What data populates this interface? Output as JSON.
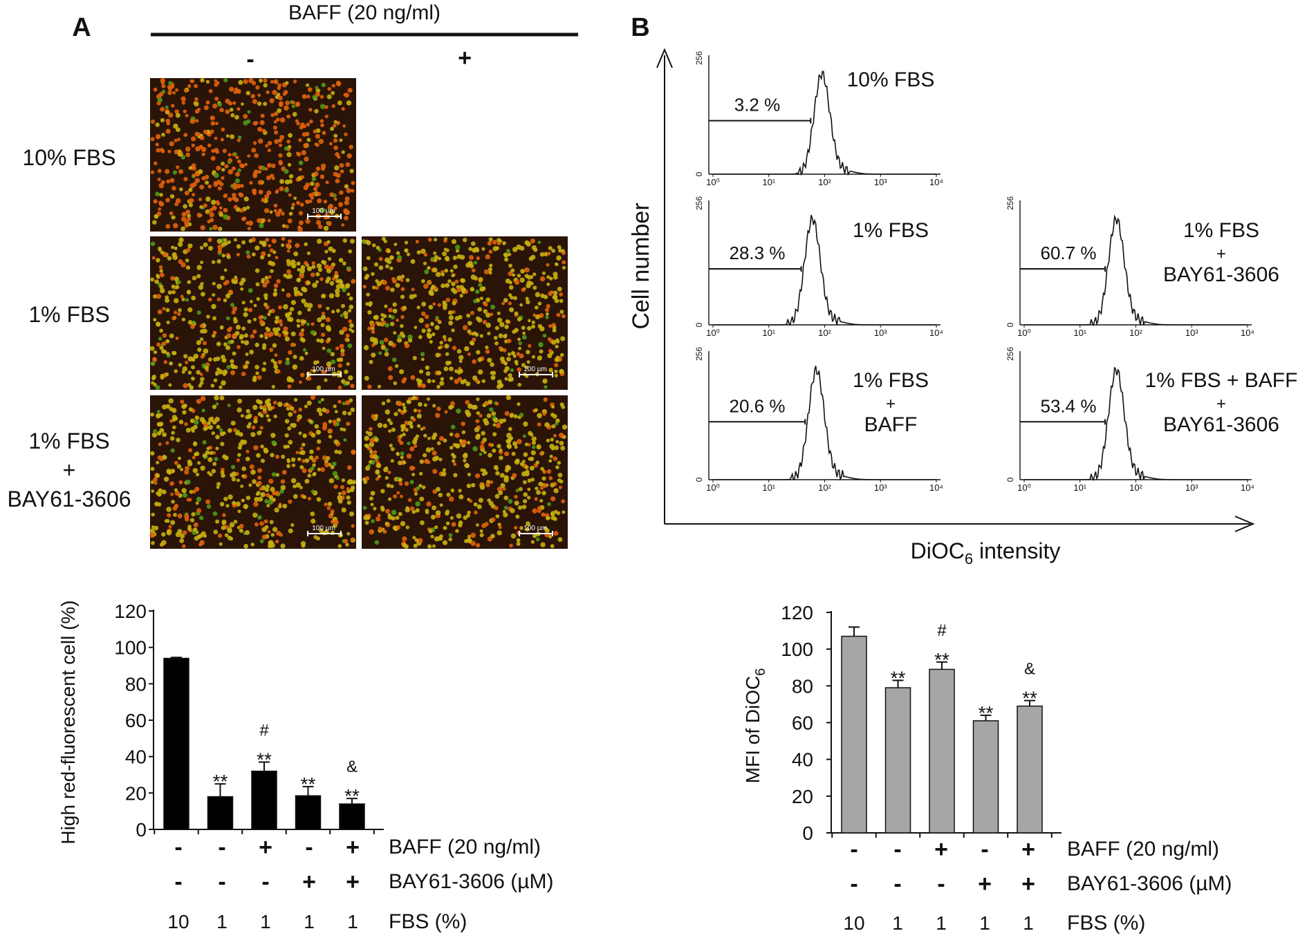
{
  "panel_a": {
    "label": "A",
    "baff_header": "BAFF (20 ng/ml)",
    "col_minus": "-",
    "col_plus": "+",
    "rows": [
      {
        "lines": [
          "10% FBS"
        ]
      },
      {
        "lines": [
          "1% FBS"
        ]
      },
      {
        "lines": [
          "1% FBS",
          "+",
          "BAY61-3606"
        ]
      }
    ],
    "scale_bar_label": "100 µm",
    "micrograph_colors": {
      "bg": "#2a1408",
      "cell_red": "#e0620c",
      "cell_yellow": "#c8b010",
      "cell_green": "#4c9a1a"
    }
  },
  "panel_b": {
    "label": "B",
    "y_label": "Cell number",
    "x_label_main": "DiOC",
    "x_label_sub": "6",
    "x_label_tail": " intensity",
    "histograms": [
      {
        "title": [
          "10% FBS"
        ],
        "percent": "3.2 %",
        "peak_log": 1.95
      },
      {
        "title": [
          "1% FBS"
        ],
        "percent": "28.3 %",
        "peak_log": 1.78
      },
      {
        "title": [
          "1% FBS",
          "+",
          "BAY61-3606"
        ],
        "percent": "60.7 %",
        "peak_log": 1.65
      },
      {
        "title": [
          "1% FBS",
          "+",
          "BAFF"
        ],
        "percent": "20.6 %",
        "peak_log": 1.85
      },
      {
        "title": [
          "1% FBS + BAFF",
          "+",
          "BAY61-3606"
        ],
        "percent": "53.4 %",
        "peak_log": 1.65
      }
    ],
    "hist_y_max": "256",
    "hist_y_min": "0",
    "hist_x_ticks": [
      "10⁰",
      "10¹",
      "10²",
      "10³",
      "10⁴"
    ]
  },
  "chart_data": [
    {
      "type": "bar",
      "title": "",
      "ylabel": "High red-fluorescent cell (%)",
      "ylim": [
        0,
        120
      ],
      "yticks": [
        0,
        20,
        40,
        60,
        80,
        100,
        120
      ],
      "values": [
        94,
        18,
        32,
        18.5,
        14
      ],
      "errors": [
        0.5,
        7,
        5,
        5,
        3
      ],
      "annotations": [
        [],
        [
          "**"
        ],
        [
          "#",
          "**"
        ],
        [
          "**"
        ],
        [
          "&",
          "**"
        ]
      ],
      "bar_color": "#000000",
      "conditions": [
        {
          "label": "BAFF (20 ng/ml)",
          "values": [
            "-",
            "-",
            "+",
            "-",
            "+"
          ]
        },
        {
          "label": "BAY61-3606 (µM)",
          "values": [
            "-",
            "-",
            "-",
            "+",
            "+"
          ]
        },
        {
          "label": "FBS (%)",
          "values": [
            "10",
            "1",
            "1",
            "1",
            "1"
          ]
        }
      ]
    },
    {
      "type": "bar",
      "title": "",
      "ylabel_main": "MFI of DiOC",
      "ylabel_sub": "6",
      "ylim": [
        0,
        120
      ],
      "yticks": [
        0,
        20,
        40,
        60,
        80,
        100,
        120
      ],
      "values": [
        107,
        79,
        89,
        61,
        69
      ],
      "errors": [
        5,
        4,
        4,
        3,
        3
      ],
      "annotations": [
        [],
        [
          "**"
        ],
        [
          "#",
          "**"
        ],
        [
          "**"
        ],
        [
          "&",
          "**"
        ]
      ],
      "bar_color": "#a6a6a6",
      "conditions": [
        {
          "label": "BAFF (20 ng/ml)",
          "values": [
            "-",
            "-",
            "+",
            "-",
            "+"
          ]
        },
        {
          "label": "BAY61-3606 (µM)",
          "values": [
            "-",
            "-",
            "-",
            "+",
            "+"
          ]
        },
        {
          "label": "FBS (%)",
          "values": [
            "10",
            "1",
            "1",
            "1",
            "1"
          ]
        }
      ]
    }
  ]
}
